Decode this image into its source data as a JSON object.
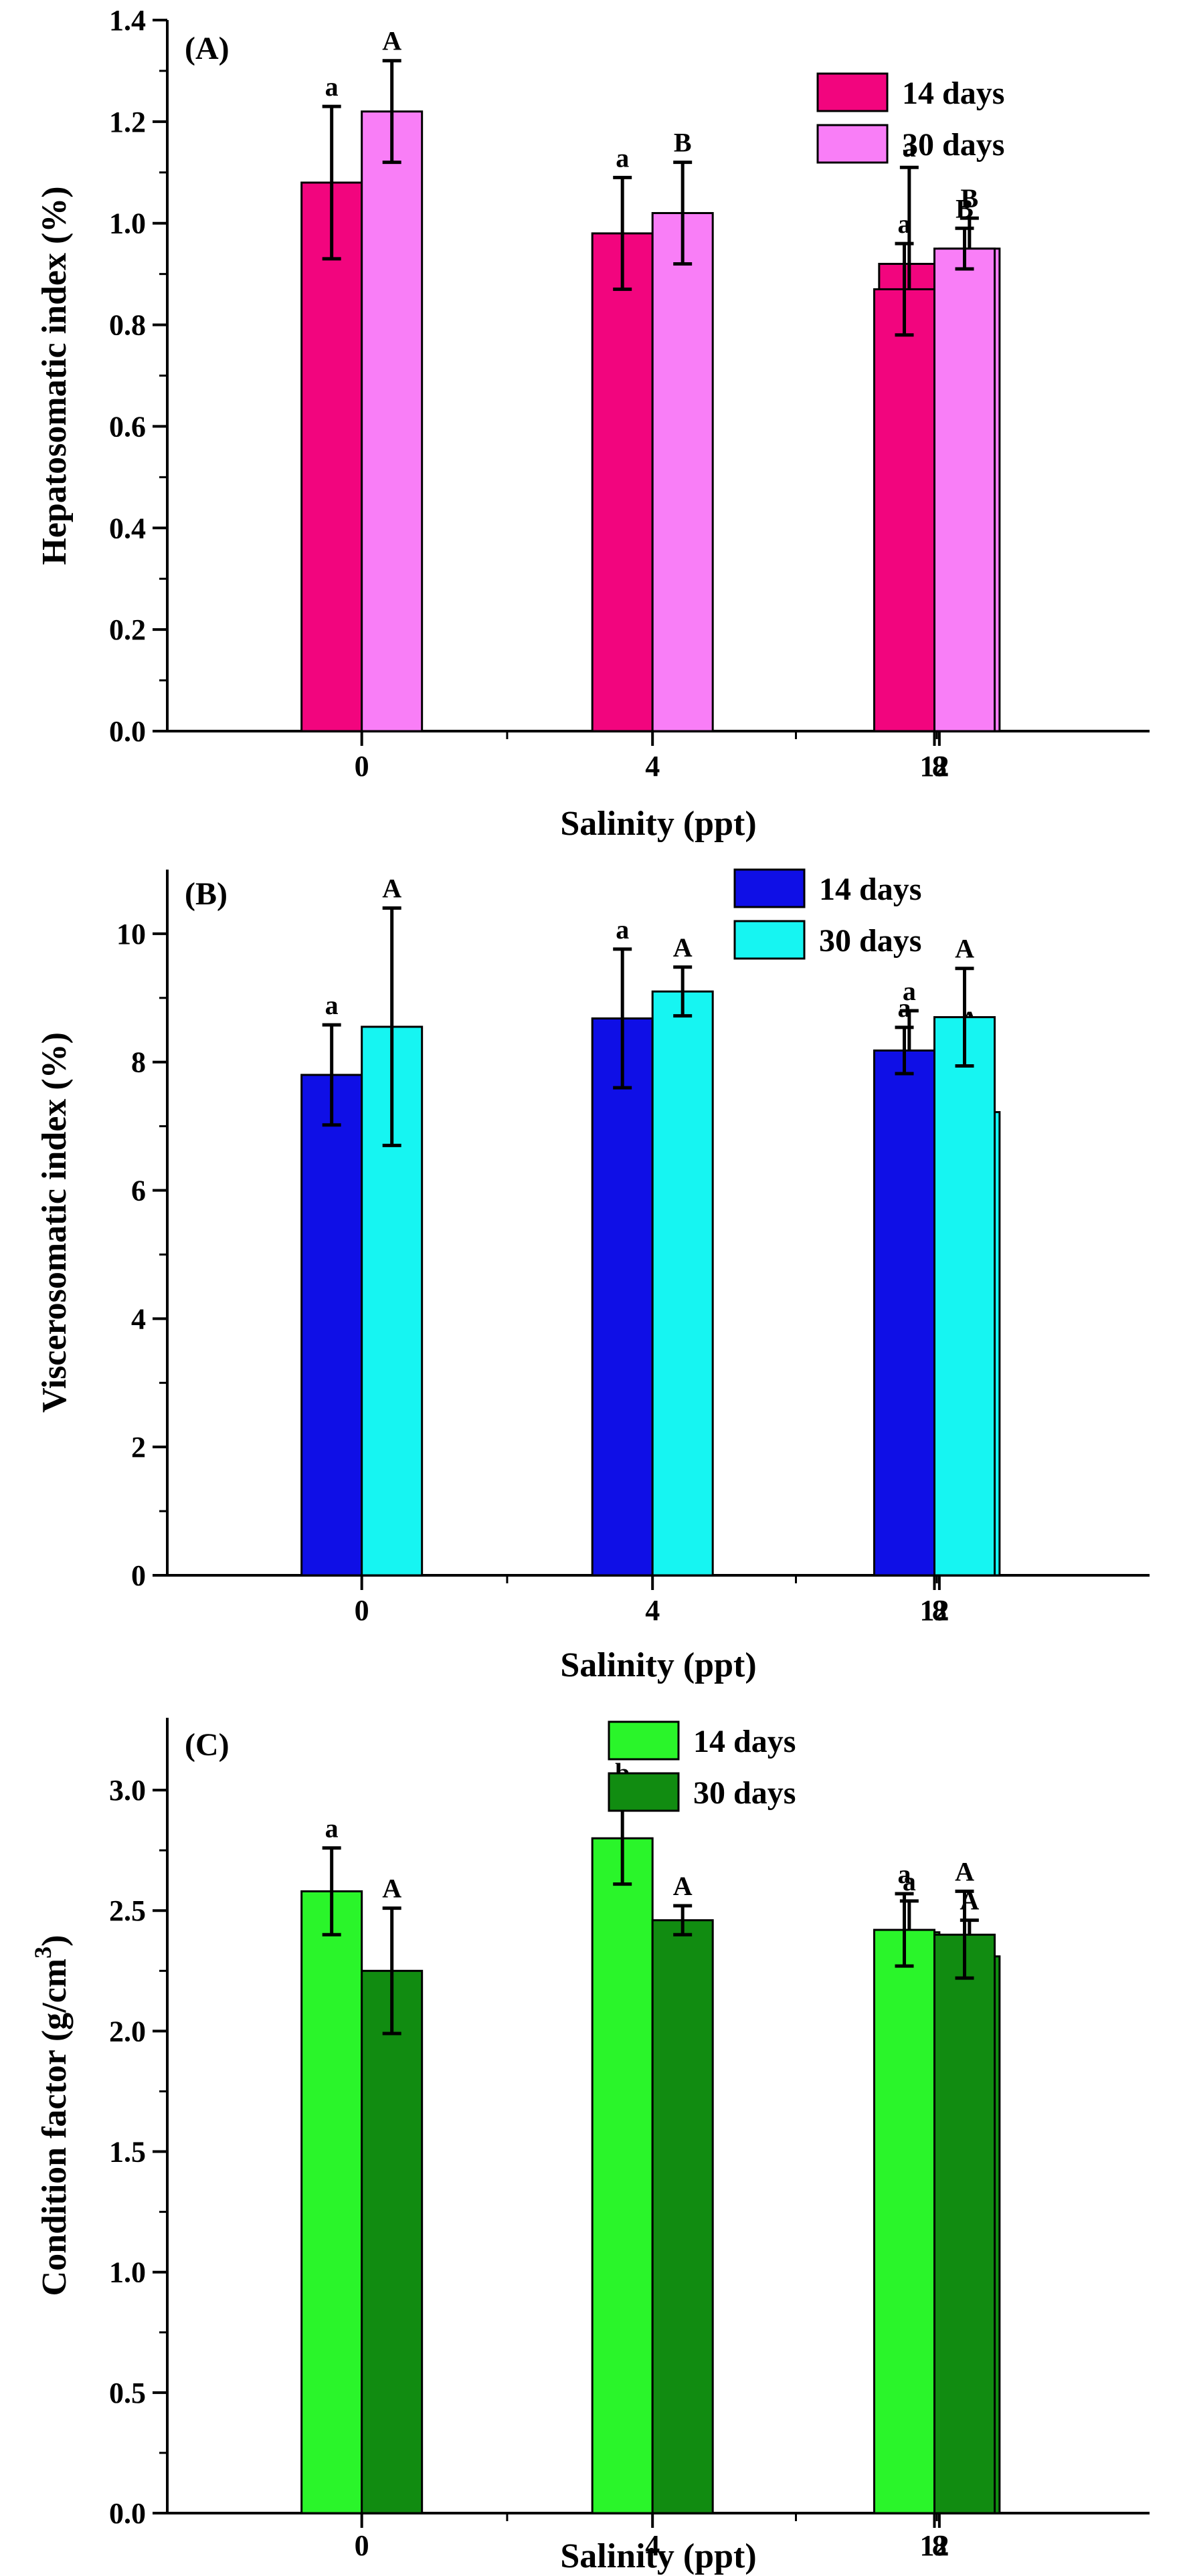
{
  "chart_data": [
    {
      "type": "bar",
      "panel_label": "(A)",
      "title": "",
      "xlabel": "Salinity (ppt)",
      "ylabel": "Hepatosomatic index (%)",
      "categories": [
        "0",
        "4",
        "8",
        "12"
      ],
      "ylim": [
        0,
        1.4
      ],
      "yticks": [
        0.0,
        0.2,
        0.4,
        0.6,
        0.8,
        1.0,
        1.2,
        1.4
      ],
      "ytick_labels": [
        "0.0",
        "0.2",
        "0.4",
        "0.6",
        "0.8",
        "1.0",
        "1.2",
        "1.4"
      ],
      "legend_position": "top-right",
      "series": [
        {
          "name": "14 days",
          "color": "#f2057e",
          "values": [
            1.08,
            0.98,
            0.92,
            0.87
          ],
          "errors": [
            0.15,
            0.11,
            0.19,
            0.09
          ],
          "labels": [
            "a",
            "a",
            "a",
            "a"
          ]
        },
        {
          "name": "30 days",
          "color": "#f97ef7",
          "values": [
            1.22,
            1.02,
            0.95,
            0.95
          ],
          "errors": [
            0.1,
            0.1,
            0.06,
            0.04
          ],
          "labels": [
            "A",
            "B",
            "B",
            "B"
          ]
        }
      ]
    },
    {
      "type": "bar",
      "panel_label": "(B)",
      "title": "",
      "xlabel": "Salinity (ppt)",
      "ylabel": "Viscerosomatic index (%)",
      "categories": [
        "0",
        "4",
        "8",
        "12"
      ],
      "ylim": [
        0,
        11
      ],
      "yticks": [
        0,
        2,
        4,
        6,
        8,
        10
      ],
      "ytick_labels": [
        "0",
        "2",
        "4",
        "6",
        "8",
        "10"
      ],
      "legend_position": "top-right",
      "series": [
        {
          "name": "14 days",
          "color": "#0f0fe6",
          "values": [
            7.8,
            8.68,
            8.1,
            8.18
          ],
          "errors": [
            0.78,
            1.08,
            0.7,
            0.36
          ],
          "labels": [
            "a",
            "a",
            "a",
            "a"
          ]
        },
        {
          "name": "30 days",
          "color": "#16f5f2",
          "values": [
            8.55,
            9.1,
            7.22,
            8.7
          ],
          "errors": [
            1.85,
            0.38,
            1.12,
            0.76
          ],
          "labels": [
            "A",
            "A",
            "A",
            "A"
          ]
        }
      ]
    },
    {
      "type": "bar",
      "panel_label": "(C)",
      "title": "",
      "xlabel": "Salinity (ppt)",
      "ylabel": "Condition factor (g/cm",
      "ylabel_superscript": "3",
      "ylabel_suffix": ")",
      "categories": [
        "0",
        "4",
        "8",
        "12"
      ],
      "ylim": [
        0,
        3.3
      ],
      "yticks": [
        0.0,
        0.5,
        1.0,
        1.5,
        2.0,
        2.5,
        3.0
      ],
      "ytick_labels": [
        "0.0",
        "0.5",
        "1.0",
        "1.5",
        "2.0",
        "2.5",
        "3.0"
      ],
      "legend_position": "top-right",
      "series": [
        {
          "name": "14 days",
          "color": "#2af52a",
          "values": [
            2.58,
            2.8,
            2.41,
            2.42
          ],
          "errors": [
            0.18,
            0.19,
            0.13,
            0.15
          ],
          "labels": [
            "a",
            "b",
            "a",
            "a"
          ]
        },
        {
          "name": "30 days",
          "color": "#118c11",
          "values": [
            2.25,
            2.46,
            2.31,
            2.4
          ],
          "errors": [
            0.26,
            0.06,
            0.15,
            0.18
          ],
          "labels": [
            "A",
            "A",
            "A",
            "A"
          ]
        }
      ]
    }
  ]
}
